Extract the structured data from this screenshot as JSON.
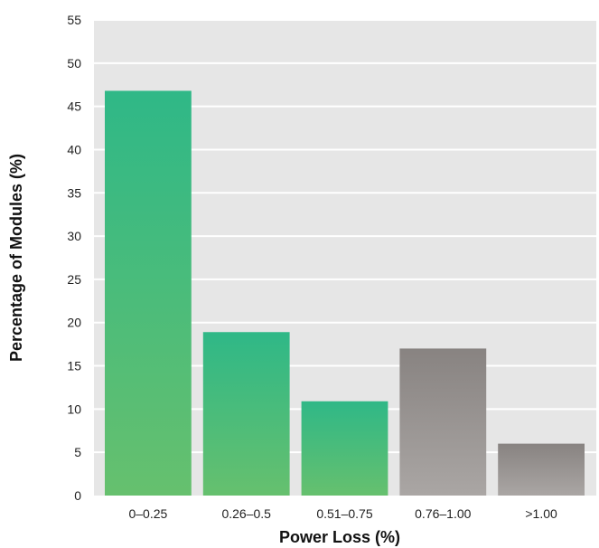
{
  "chart_data": {
    "type": "bar",
    "title": "",
    "xlabel": "Power Loss (%)",
    "ylabel": "Percentage of Modules (%)",
    "categories": [
      "0–0.25",
      "0.26–0.5",
      "0.51–0.75",
      "0.76–1.00",
      ">1.00"
    ],
    "values": [
      46.8,
      18.9,
      10.9,
      17.0,
      6.0
    ],
    "ylim": [
      0,
      55
    ],
    "yticks": [
      0,
      5,
      10,
      15,
      20,
      25,
      30,
      35,
      40,
      45,
      50,
      55
    ],
    "grid": true,
    "legend": "none",
    "bar_groups": [
      "green",
      "green",
      "green",
      "gray",
      "gray"
    ]
  },
  "colors": {
    "plot_background": "#e6e6e6",
    "grid": "#ffffff",
    "green_top": "#2fb887",
    "green_bottom": "#66c06e",
    "gray_top": "#888381",
    "gray_bottom": "#aaa6a4"
  }
}
